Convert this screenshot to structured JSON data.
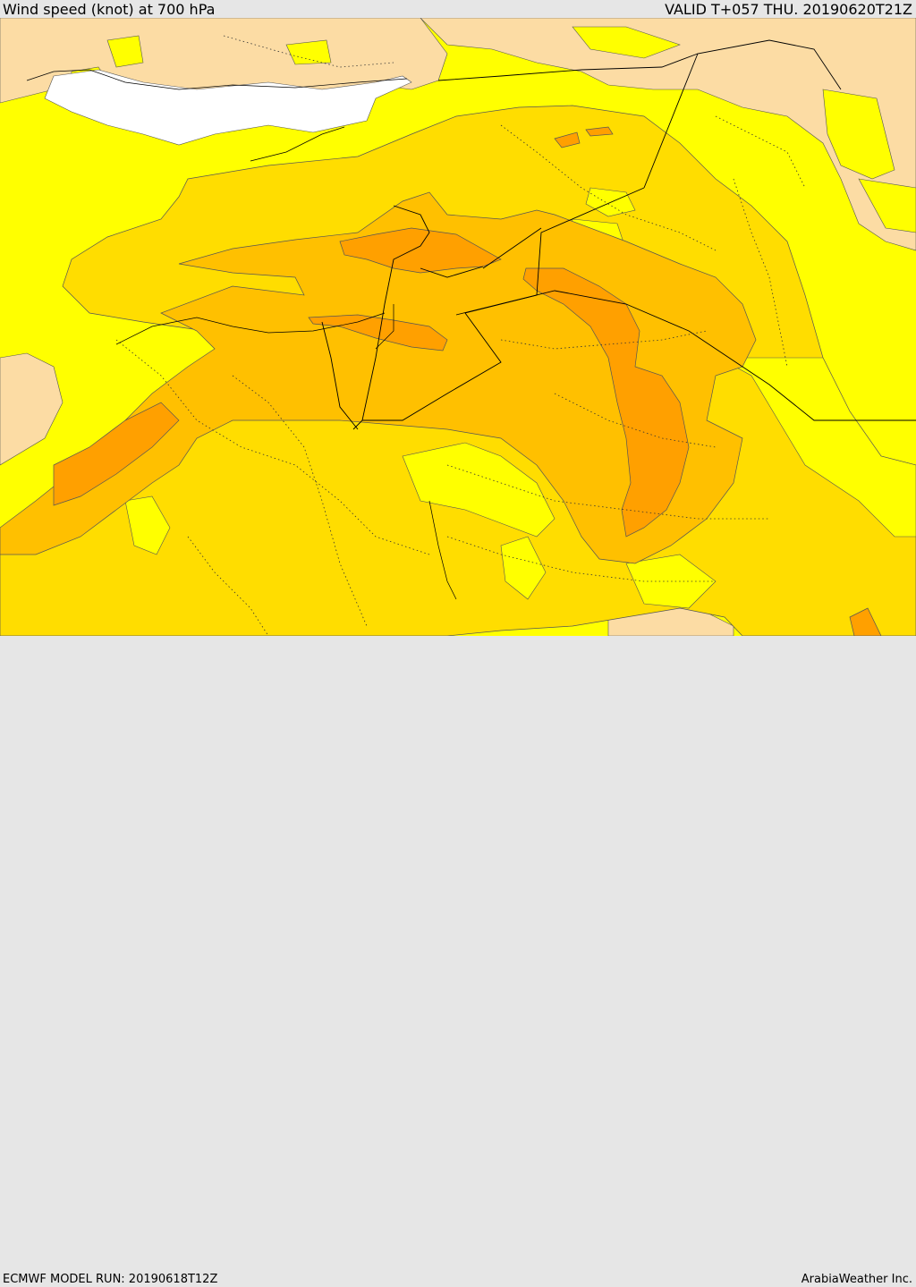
{
  "header": {
    "title": "Wind speed (knot) at 700 hPa",
    "valid": "VALID T+057 THU. 20190620T21Z"
  },
  "footer": {
    "model_run": "ECMWF MODEL RUN: 20190618T12Z",
    "credit": "ArabiaWeather Inc."
  },
  "colors": {
    "tan": "#fcdca4",
    "yellow": "#ffff00",
    "gold": "#ffdd00",
    "amber": "#ffc000",
    "orange": "#ffa500",
    "sea_white": "#ffffff",
    "border_line": "#000000"
  }
}
